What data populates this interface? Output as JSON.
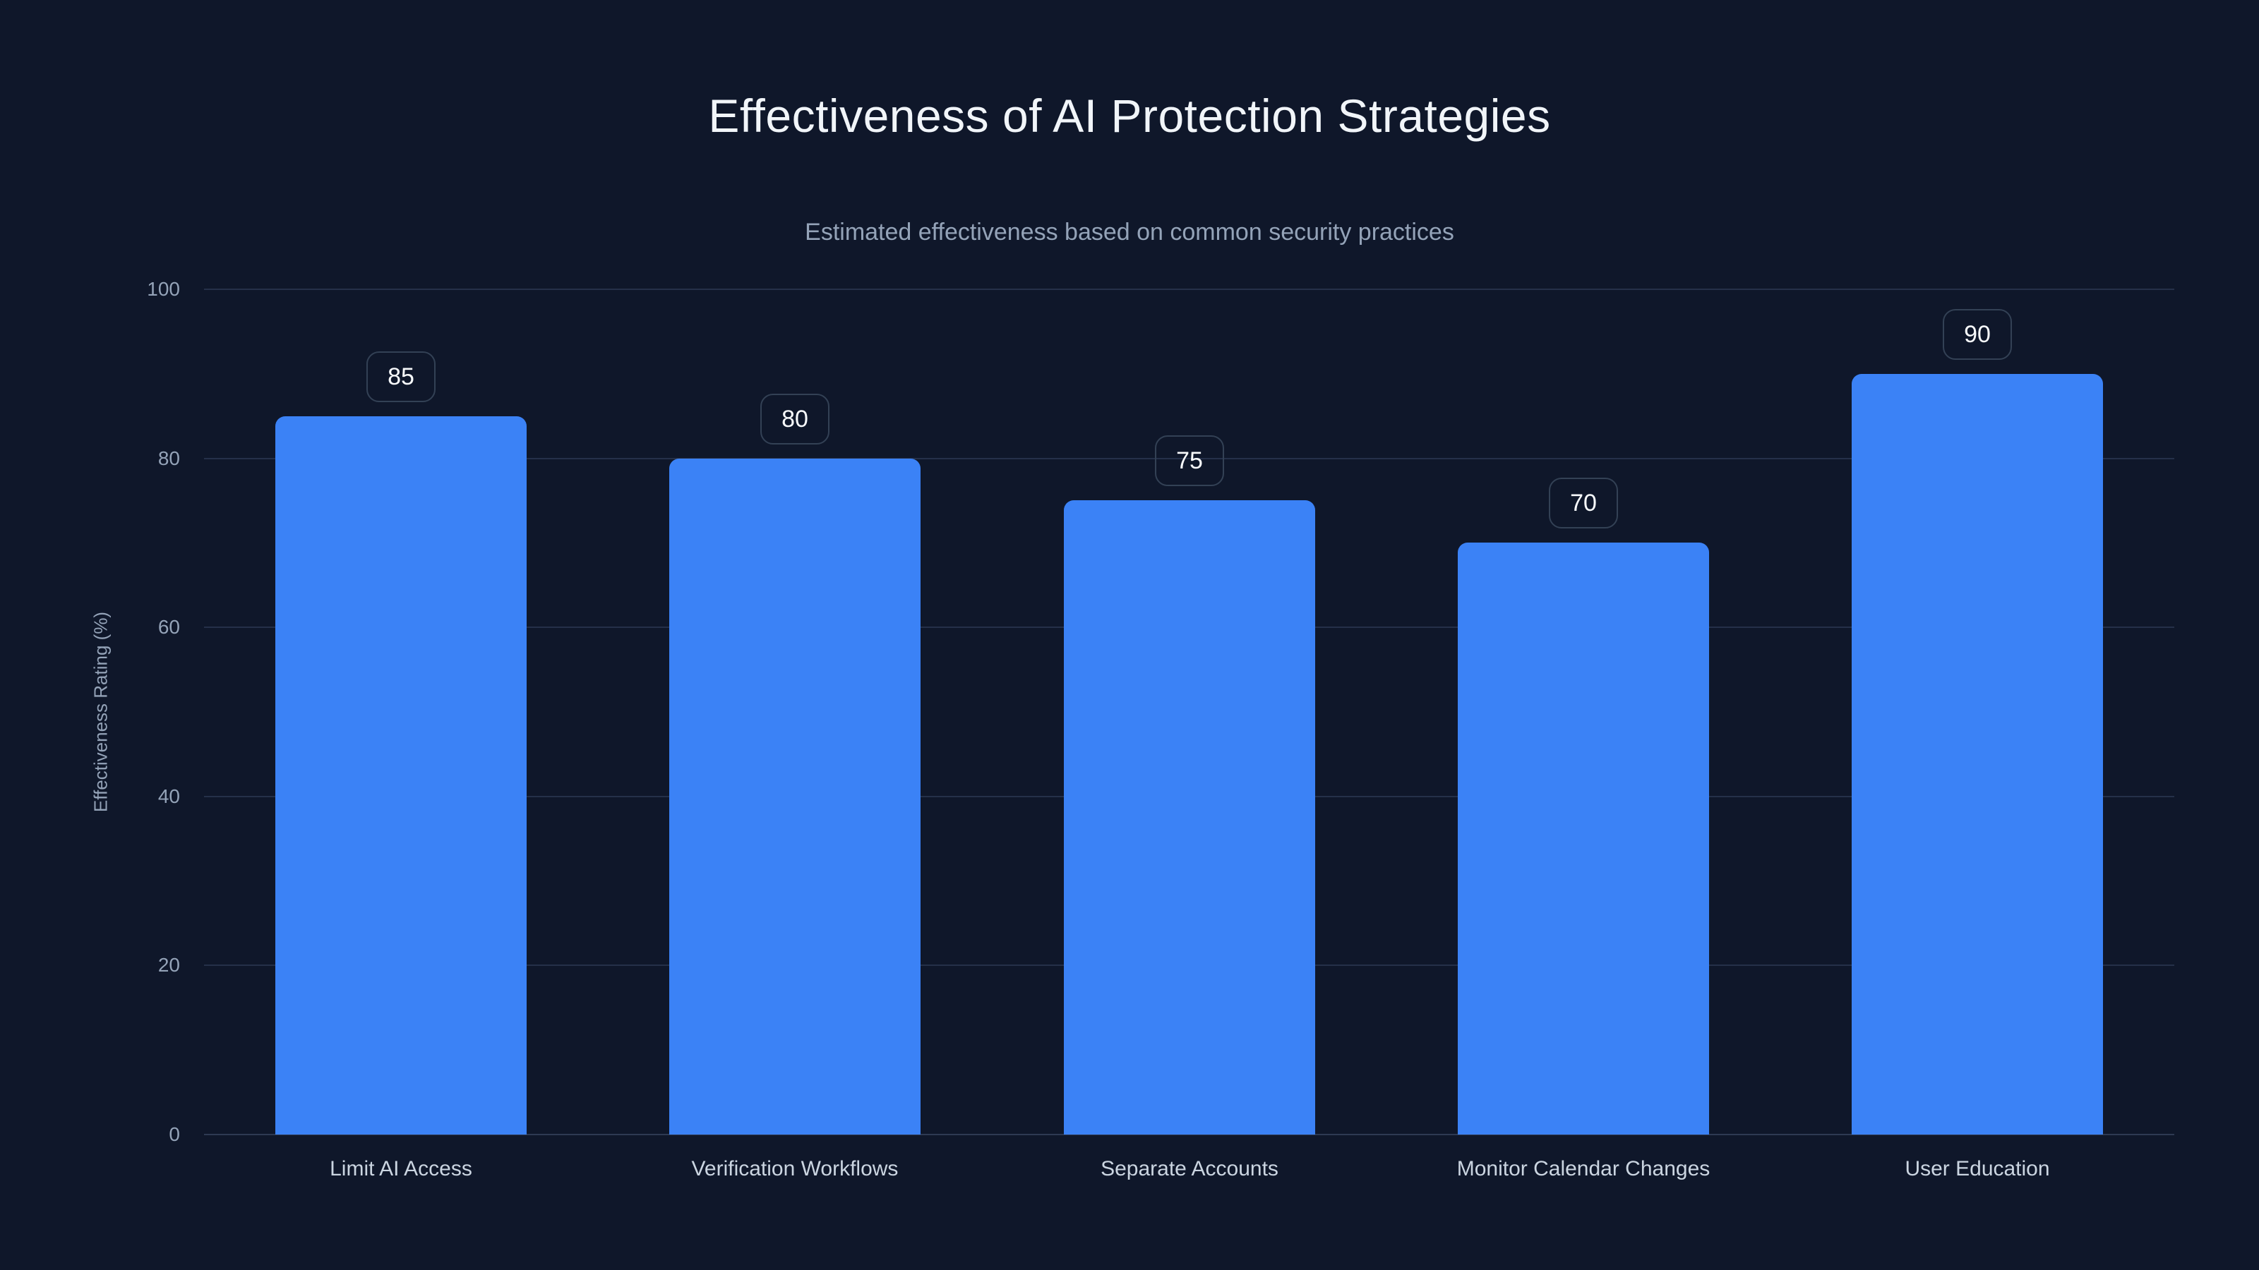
{
  "chart_data": {
    "type": "bar",
    "title": "Effectiveness of AI Protection Strategies",
    "subtitle": "Estimated effectiveness based on common security practices",
    "xlabel": "",
    "ylabel": "Effectiveness Rating (%)",
    "categories": [
      "Limit AI Access",
      "Verification Workflows",
      "Separate Accounts",
      "Monitor Calendar Changes",
      "User Education"
    ],
    "values": [
      85,
      80,
      75,
      70,
      90
    ],
    "ylim": [
      0,
      100
    ],
    "yticks": [
      0,
      20,
      40,
      60,
      80,
      100
    ],
    "grid": true,
    "legend": false,
    "bar_style": "rounded-top",
    "value_label_style": "boxed-above-bar"
  },
  "colors": {
    "background": "#0f172a",
    "bar": "#3b82f6",
    "grid": "#253049",
    "baseline": "#2e3a52",
    "title_text": "#f1f5f9",
    "muted_text": "#94a3b8",
    "category_text": "#cbd5e1",
    "badge_border": "#334155",
    "badge_text": "#f8fafc"
  }
}
